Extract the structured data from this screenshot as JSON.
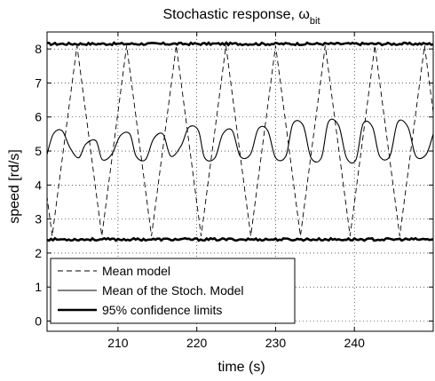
{
  "chart_data": {
    "type": "line",
    "title": "Stochastic response, ω",
    "title_subscript": "bit",
    "xlabel": "time (s)",
    "ylabel": "speed [rd/s]",
    "xlim": [
      201,
      250
    ],
    "ylim": [
      -0.3,
      8.5
    ],
    "xticks": [
      210,
      220,
      230,
      240
    ],
    "yticks": [
      0,
      1,
      2,
      3,
      4,
      5,
      6,
      7,
      8
    ],
    "grid": "dotted",
    "legend_position": "bottom-left",
    "series": [
      {
        "name": "Mean model",
        "style": "dashed",
        "period": 6.3,
        "phase_x": 204.8,
        "min": 2.5,
        "max": 8.1
      },
      {
        "name": "Mean of the Stoch. Model",
        "style": "thin solid",
        "x": [
          201,
          201.8,
          202.9,
          203.9,
          205.0,
          205.9,
          207.2,
          208.0,
          209.2,
          210.3,
          211.5,
          212.3,
          213.5,
          214.5,
          215.7,
          216.7,
          218.0,
          219.0,
          220.2,
          221.0,
          222.3,
          223.3,
          224.5,
          225.5,
          226.8,
          227.8,
          229.0,
          230.0,
          231.3,
          232.2,
          233.5,
          234.5,
          235.8,
          236.7,
          238.0,
          239.0,
          240.2,
          241.1,
          242.3,
          243.2,
          244.5,
          245.5,
          246.8,
          247.8,
          249.1,
          250.0
        ],
        "y": [
          4.9,
          5.5,
          5.6,
          5.1,
          4.8,
          5.2,
          5.3,
          4.75,
          4.9,
          5.45,
          5.5,
          4.85,
          4.75,
          5.35,
          5.5,
          4.85,
          5.15,
          5.7,
          5.6,
          4.8,
          4.8,
          5.5,
          5.6,
          4.85,
          4.9,
          5.65,
          5.6,
          4.8,
          4.85,
          5.8,
          5.75,
          4.8,
          4.8,
          5.85,
          5.75,
          4.8,
          4.75,
          5.8,
          5.7,
          4.85,
          4.85,
          5.85,
          5.7,
          4.85,
          4.9,
          5.5
        ]
      },
      {
        "name": "95% confidence limits",
        "style": "thick solid",
        "upper": 8.15,
        "lower": 2.4
      }
    ]
  }
}
